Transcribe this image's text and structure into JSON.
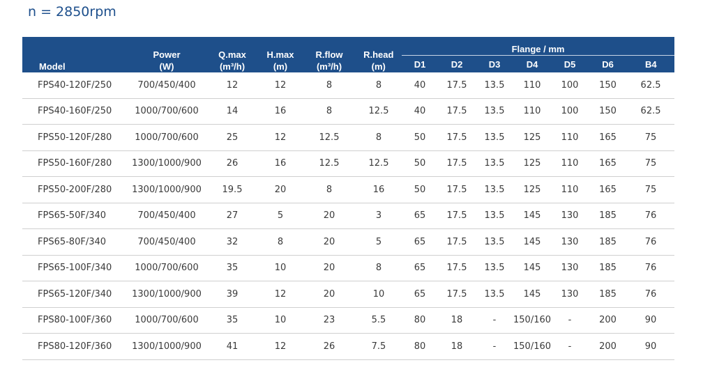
{
  "caption": "n = 2850rpm",
  "header": {
    "model": "Model",
    "power": [
      "Power",
      "(W)"
    ],
    "qmax": [
      "Q.max",
      "(m³/h)"
    ],
    "hmax": [
      "H.max",
      "(m)"
    ],
    "rflow": [
      "R.flow",
      "(m³/h)"
    ],
    "rhead": [
      "R.head",
      "(m)"
    ],
    "flange": "Flange / mm",
    "flange_cols": [
      "D1",
      "D2",
      "D3",
      "D4",
      "D5",
      "D6",
      "B4"
    ]
  },
  "rows": [
    [
      "FPS40-120F/250",
      "700/450/400",
      "12",
      "12",
      "8",
      "8",
      "40",
      "17.5",
      "13.5",
      "110",
      "100",
      "150",
      "62.5"
    ],
    [
      "FPS40-160F/250",
      "1000/700/600",
      "14",
      "16",
      "8",
      "12.5",
      "40",
      "17.5",
      "13.5",
      "110",
      "100",
      "150",
      "62.5"
    ],
    [
      "FPS50-120F/280",
      "1000/700/600",
      "25",
      "12",
      "12.5",
      "8",
      "50",
      "17.5",
      "13.5",
      "125",
      "110",
      "165",
      "75"
    ],
    [
      "FPS50-160F/280",
      "1300/1000/900",
      "26",
      "16",
      "12.5",
      "12.5",
      "50",
      "17.5",
      "13.5",
      "125",
      "110",
      "165",
      "75"
    ],
    [
      "FPS50-200F/280",
      "1300/1000/900",
      "19.5",
      "20",
      "8",
      "16",
      "50",
      "17.5",
      "13.5",
      "125",
      "110",
      "165",
      "75"
    ],
    [
      "FPS65-50F/340",
      "700/450/400",
      "27",
      "5",
      "20",
      "3",
      "65",
      "17.5",
      "13.5",
      "145",
      "130",
      "185",
      "76"
    ],
    [
      "FPS65-80F/340",
      "700/450/400",
      "32",
      "8",
      "20",
      "5",
      "65",
      "17.5",
      "13.5",
      "145",
      "130",
      "185",
      "76"
    ],
    [
      "FPS65-100F/340",
      "1000/700/600",
      "35",
      "10",
      "20",
      "8",
      "65",
      "17.5",
      "13.5",
      "145",
      "130",
      "185",
      "76"
    ],
    [
      "FPS65-120F/340",
      "1300/1000/900",
      "39",
      "12",
      "20",
      "10",
      "65",
      "17.5",
      "13.5",
      "145",
      "130",
      "185",
      "76"
    ],
    [
      "FPS80-100F/360",
      "1000/700/600",
      "35",
      "10",
      "23",
      "5.5",
      "80",
      "18",
      "-",
      "150/160",
      "-",
      "200",
      "90"
    ],
    [
      "FPS80-120F/360",
      "1300/1000/900",
      "41",
      "12",
      "26",
      "7.5",
      "80",
      "18",
      "-",
      "150/160",
      "-",
      "200",
      "90"
    ]
  ]
}
